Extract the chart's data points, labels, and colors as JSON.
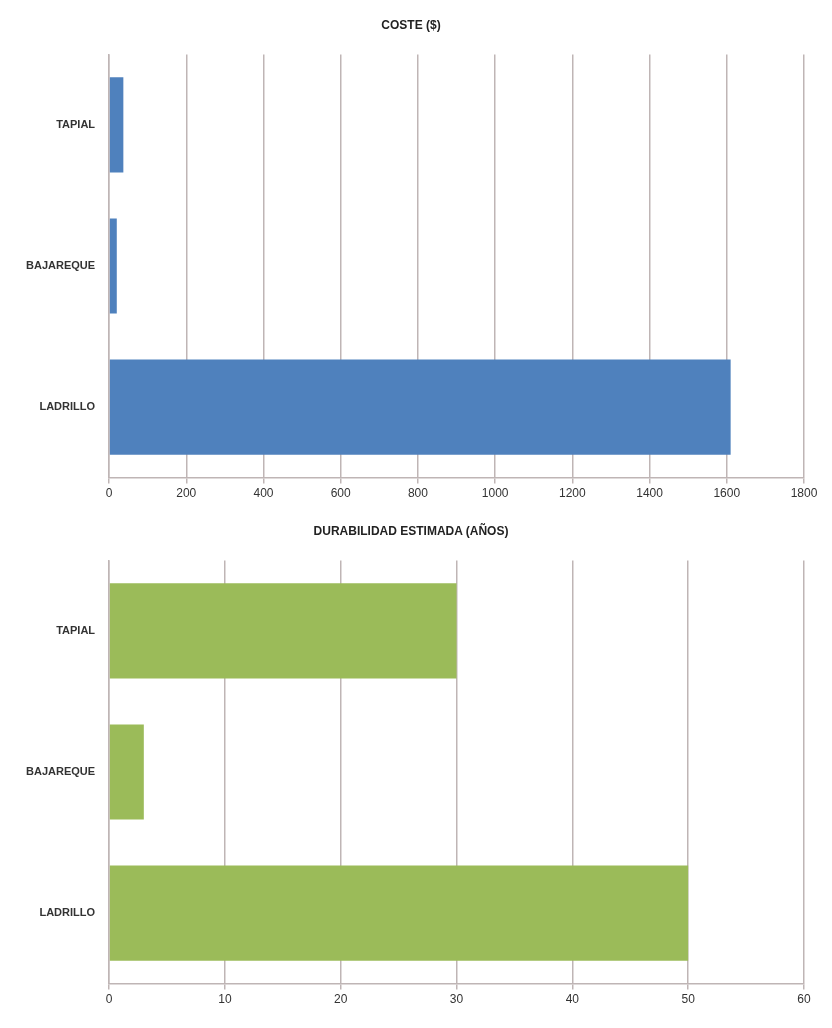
{
  "chart_data": [
    {
      "type": "bar",
      "title": "COSTE ($)",
      "orientation": "horizontal",
      "categories": [
        "TAPIAL",
        "BAJAREQUE",
        "LADRILLO"
      ],
      "values": [
        37,
        20,
        1610
      ],
      "color": "#4f81bd",
      "xlim": [
        0,
        1800
      ],
      "xticks": [
        0,
        200,
        400,
        600,
        800,
        1000,
        1200,
        1400,
        1600,
        1800
      ],
      "grid": "x"
    },
    {
      "type": "bar",
      "title": "DURABILIDAD ESTIMADA (AÑOS)",
      "orientation": "horizontal",
      "categories": [
        "TAPIAL",
        "BAJAREQUE",
        "LADRILLO"
      ],
      "values": [
        30,
        3,
        50
      ],
      "color": "#9bbb59",
      "xlim": [
        0,
        60
      ],
      "xticks": [
        0,
        10,
        20,
        30,
        40,
        50,
        60
      ],
      "grid": "x"
    }
  ]
}
